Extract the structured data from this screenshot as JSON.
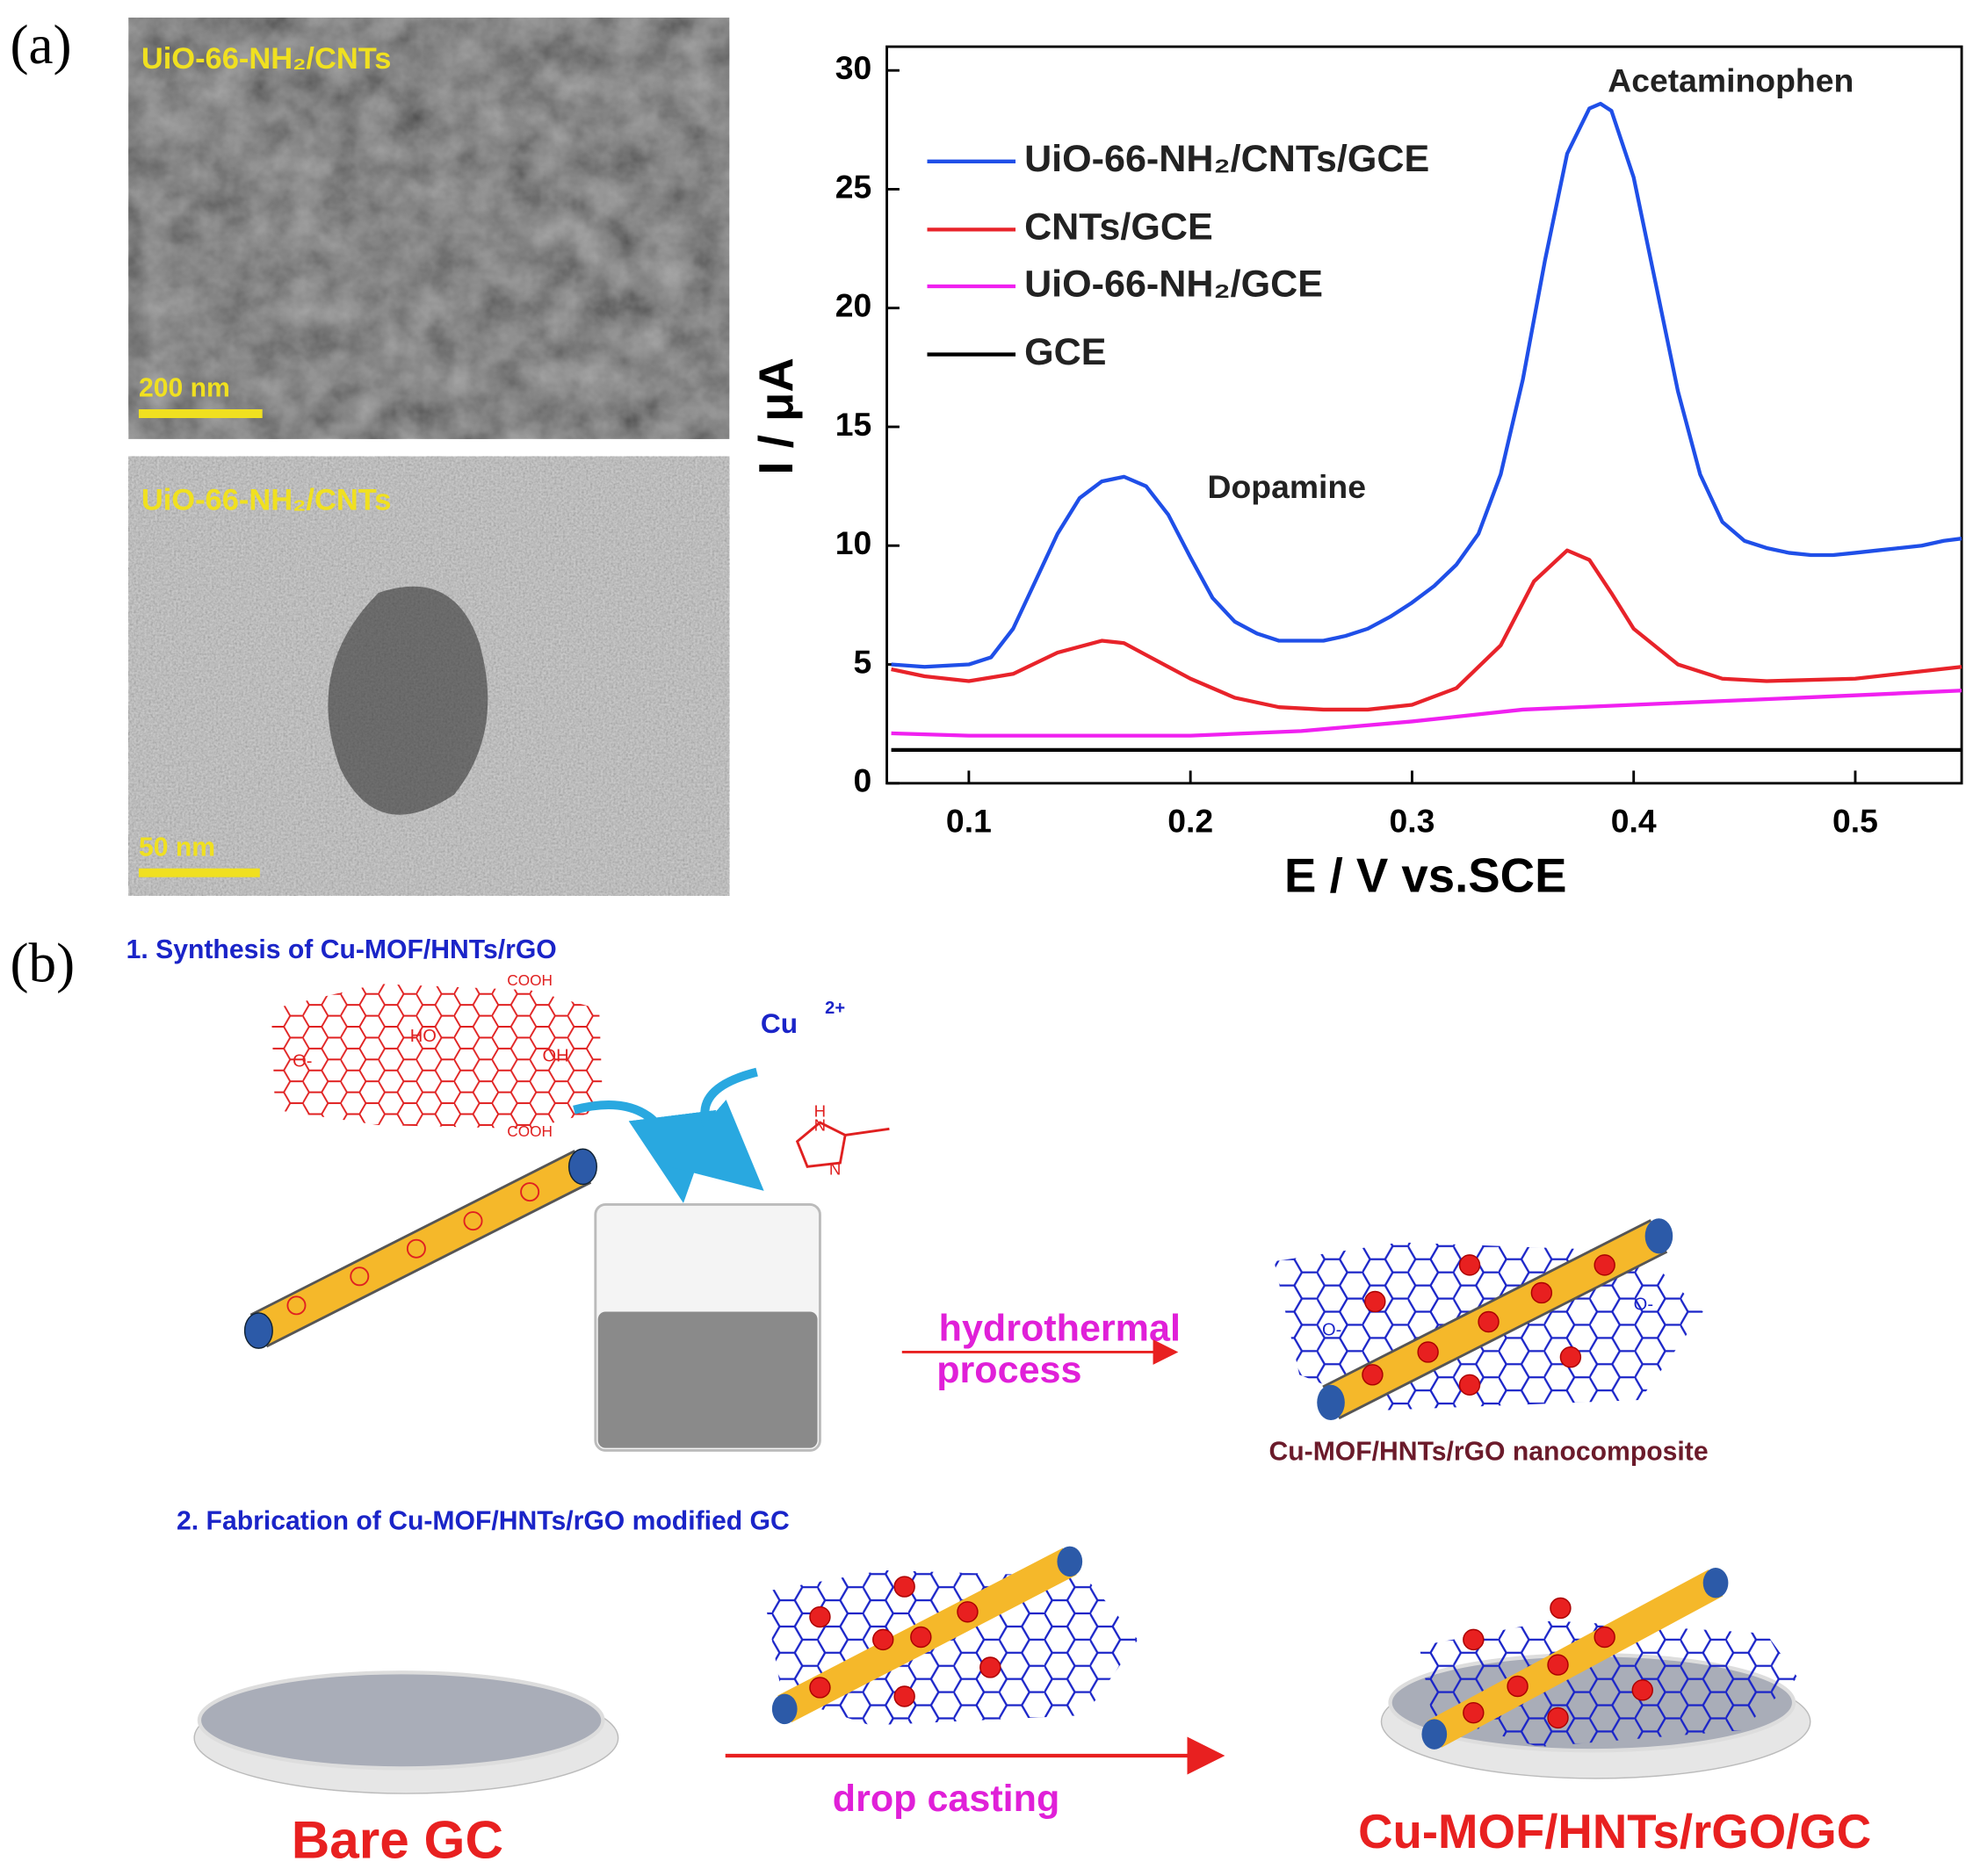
{
  "panel_labels": [
    "(a)",
    "(b)"
  ],
  "micrographs": [
    {
      "label": "UiO-66-NH₂/CNTs",
      "scale_bar": "200 nm"
    },
    {
      "label": "UiO-66-NH₂/CNTs",
      "scale_bar": "50 nm"
    }
  ],
  "chart_data": {
    "type": "line",
    "xlabel": "E / V vs.SCE",
    "ylabel": "I / μA",
    "xlim": [
      0.063,
      0.548
    ],
    "ylim": [
      0,
      31
    ],
    "xticks": [
      0.1,
      0.2,
      0.3,
      0.4,
      0.5
    ],
    "yticks": [
      0,
      5,
      10,
      15,
      20,
      25,
      30
    ],
    "legend": "upper left",
    "annotations": [
      "Dopamine",
      "Acetaminophen"
    ],
    "series": [
      {
        "name": "UiO-66-NH₂/CNTs/GCE",
        "color": "#1f4fe8",
        "x": [
          0.065,
          0.08,
          0.1,
          0.11,
          0.12,
          0.13,
          0.14,
          0.15,
          0.16,
          0.17,
          0.18,
          0.19,
          0.2,
          0.21,
          0.22,
          0.23,
          0.24,
          0.25,
          0.26,
          0.27,
          0.28,
          0.29,
          0.3,
          0.31,
          0.32,
          0.33,
          0.34,
          0.35,
          0.36,
          0.37,
          0.38,
          0.385,
          0.39,
          0.4,
          0.41,
          0.42,
          0.43,
          0.44,
          0.45,
          0.46,
          0.47,
          0.48,
          0.49,
          0.5,
          0.51,
          0.52,
          0.53,
          0.54,
          0.548
        ],
        "values": [
          5.0,
          4.9,
          5.0,
          5.3,
          6.5,
          8.5,
          10.5,
          12.0,
          12.7,
          12.9,
          12.5,
          11.3,
          9.5,
          7.8,
          6.8,
          6.3,
          6.0,
          6.0,
          6.0,
          6.2,
          6.5,
          7.0,
          7.6,
          8.3,
          9.2,
          10.5,
          13,
          17,
          22,
          26.5,
          28.4,
          28.6,
          28.3,
          25.5,
          21,
          16.5,
          13,
          11,
          10.2,
          9.9,
          9.7,
          9.6,
          9.6,
          9.7,
          9.8,
          9.9,
          10.0,
          10.2,
          10.3
        ]
      },
      {
        "name": "CNTs/GCE",
        "color": "#e8232a",
        "x": [
          0.065,
          0.08,
          0.1,
          0.12,
          0.14,
          0.16,
          0.17,
          0.18,
          0.2,
          0.22,
          0.24,
          0.26,
          0.28,
          0.3,
          0.32,
          0.34,
          0.355,
          0.37,
          0.38,
          0.39,
          0.4,
          0.42,
          0.44,
          0.46,
          0.5,
          0.548
        ],
        "values": [
          4.8,
          4.5,
          4.3,
          4.6,
          5.5,
          6.0,
          5.9,
          5.4,
          4.4,
          3.6,
          3.2,
          3.1,
          3.1,
          3.3,
          4.0,
          5.8,
          8.5,
          9.8,
          9.4,
          8.0,
          6.5,
          5.0,
          4.4,
          4.3,
          4.4,
          4.9
        ]
      },
      {
        "name": "UiO-66-NH₂/GCE",
        "color": "#f020f0",
        "x": [
          0.065,
          0.1,
          0.2,
          0.25,
          0.3,
          0.35,
          0.4,
          0.45,
          0.5,
          0.548
        ],
        "values": [
          2.1,
          2.0,
          2.0,
          2.2,
          2.6,
          3.1,
          3.3,
          3.5,
          3.7,
          3.9
        ]
      },
      {
        "name": "GCE",
        "color": "#000000",
        "x": [
          0.065,
          0.548
        ],
        "values": [
          1.4,
          1.4
        ]
      }
    ]
  },
  "scheme": {
    "step1_title": "1. Synthesis of Cu-MOF/HNTs/rGO",
    "chem_labels": [
      "COOH",
      "HO",
      "OH",
      "O-",
      "COOH"
    ],
    "cu": "Cu",
    "cu_charge": "2+",
    "imidazole_labels": [
      "H",
      "N",
      "N"
    ],
    "hydrothermal": "hydrothermal",
    "process": "process",
    "nanocomposite": "Cu-MOF/HNTs/rGO nanocomposite",
    "composite_labels": [
      "O-",
      "O-"
    ],
    "step2_title": "2. Fabrication of Cu-MOF/HNTs/rGO modified GC",
    "bare_gc": "Bare GC",
    "drop_casting": "drop casting",
    "final": "Cu-MOF/HNTs/rGO/GC"
  }
}
